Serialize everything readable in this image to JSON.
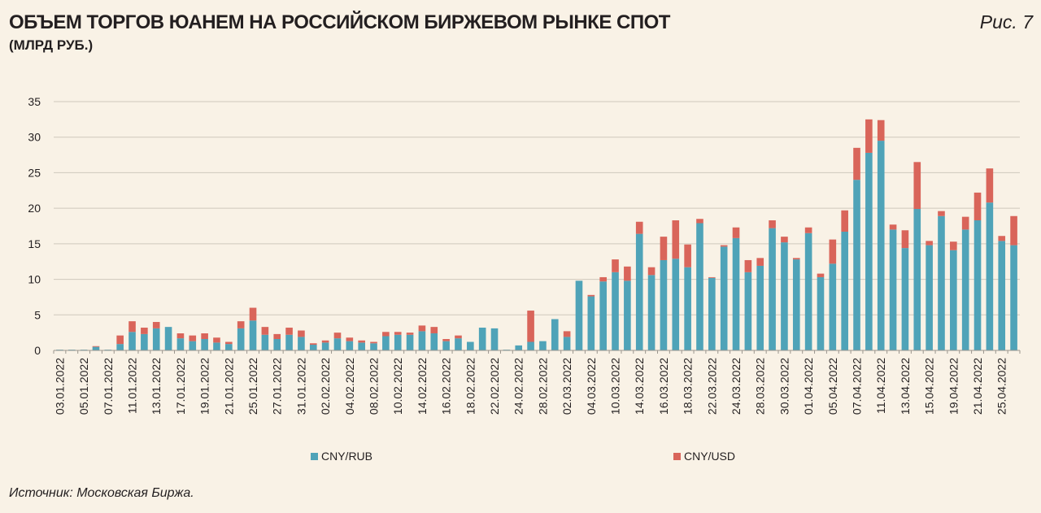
{
  "header": {
    "title": "ОБЪЕМ ТОРГОВ ЮАНЕМ НА РОССИЙСКОМ БИРЖЕВОМ РЫНКЕ СПОТ",
    "subtitle": "(МЛРД РУБ.)",
    "figure_label": "Рис. 7"
  },
  "footer": {
    "source": "Источник: Московская Биржа."
  },
  "colors": {
    "cny_rub": "#4fa3b8",
    "cny_usd": "#d9655a",
    "grid": "#cfc8bc",
    "axis": "#9a958d"
  },
  "chart_data": {
    "type": "bar",
    "stacked": true,
    "title": "ОБЪЕМ ТОРГОВ ЮАНЕМ НА РОССИЙСКОМ БИРЖЕВОМ РЫНКЕ СПОТ",
    "ylabel": "(МЛРД РУБ.)",
    "ylim": [
      0,
      35
    ],
    "yticks": [
      0,
      5,
      10,
      15,
      20,
      25,
      30,
      35
    ],
    "grid": true,
    "legend_position": "bottom",
    "x_tick_labels": [
      "03.01.2022",
      "05.01.2022",
      "07.01.2022",
      "11.01.2022",
      "13.01.2022",
      "17.01.2022",
      "19.01.2022",
      "21.01.2022",
      "25.01.2022",
      "27.01.2022",
      "31.01.2022",
      "02.02.2022",
      "04.02.2022",
      "08.02.2022",
      "10.02.2022",
      "14.02.2022",
      "16.02.2022",
      "18.02.2022",
      "22.02.2022",
      "24.02.2022",
      "28.02.2022",
      "02.03.2022",
      "04.03.2022",
      "10.03.2022",
      "14.03.2022",
      "16.03.2022",
      "18.03.2022",
      "22.03.2022",
      "24.03.2022",
      "28.03.2022",
      "30.03.2022",
      "01.04.2022",
      "05.04.2022",
      "07.04.2022",
      "11.04.2022",
      "13.04.2022",
      "15.04.2022",
      "19.04.2022",
      "21.04.2022",
      "25.04.2022"
    ],
    "series": [
      {
        "name": "CNY/RUB",
        "values": [
          0.1,
          0.1,
          0.1,
          0.5,
          0.1,
          0.9,
          2.6,
          2.3,
          3.1,
          3.3,
          1.7,
          1.3,
          1.6,
          1.1,
          0.9,
          3.1,
          4.2,
          2.2,
          1.6,
          2.2,
          1.9,
          0.8,
          1.1,
          1.7,
          1.3,
          1.1,
          1.0,
          2.0,
          2.2,
          2.2,
          2.7,
          2.4,
          1.3,
          1.7,
          1.2,
          3.2,
          3.1,
          0.1,
          0.7,
          1.2,
          1.3,
          4.4,
          1.9,
          9.8,
          7.6,
          9.7,
          11.0,
          9.8,
          16.4,
          10.6,
          12.7,
          12.9,
          11.7,
          17.9,
          10.2,
          14.6,
          15.8,
          11.0,
          11.9,
          17.2,
          15.2,
          12.8,
          16.5,
          10.3,
          12.2,
          16.7,
          24.0,
          27.8,
          29.5,
          17.0,
          14.4,
          19.9,
          14.8,
          18.9,
          14.1,
          17.0,
          18.3,
          20.8,
          15.4,
          14.8
        ],
        "color": "#4fa3b8"
      },
      {
        "name": "CNY/USD",
        "values": [
          0.0,
          0.0,
          0.0,
          0.1,
          0.0,
          1.2,
          1.5,
          0.9,
          0.9,
          0.0,
          0.7,
          0.8,
          0.8,
          0.7,
          0.3,
          1.0,
          1.8,
          1.1,
          0.7,
          1.0,
          0.9,
          0.2,
          0.3,
          0.8,
          0.5,
          0.3,
          0.2,
          0.6,
          0.4,
          0.3,
          0.8,
          0.9,
          0.3,
          0.4,
          0.0,
          0.0,
          0.0,
          0.0,
          0.0,
          4.4,
          0.0,
          0.0,
          0.8,
          0.0,
          0.2,
          0.6,
          1.8,
          2.0,
          1.7,
          1.1,
          3.3,
          5.4,
          3.2,
          0.6,
          0.1,
          0.2,
          1.5,
          1.7,
          1.1,
          1.1,
          0.8,
          0.2,
          0.8,
          0.5,
          3.4,
          3.0,
          4.5,
          4.7,
          2.9,
          0.7,
          2.5,
          6.6,
          0.6,
          0.7,
          1.2,
          1.8,
          3.9,
          4.8,
          0.7,
          4.1
        ],
        "color": "#d9655a"
      }
    ]
  }
}
